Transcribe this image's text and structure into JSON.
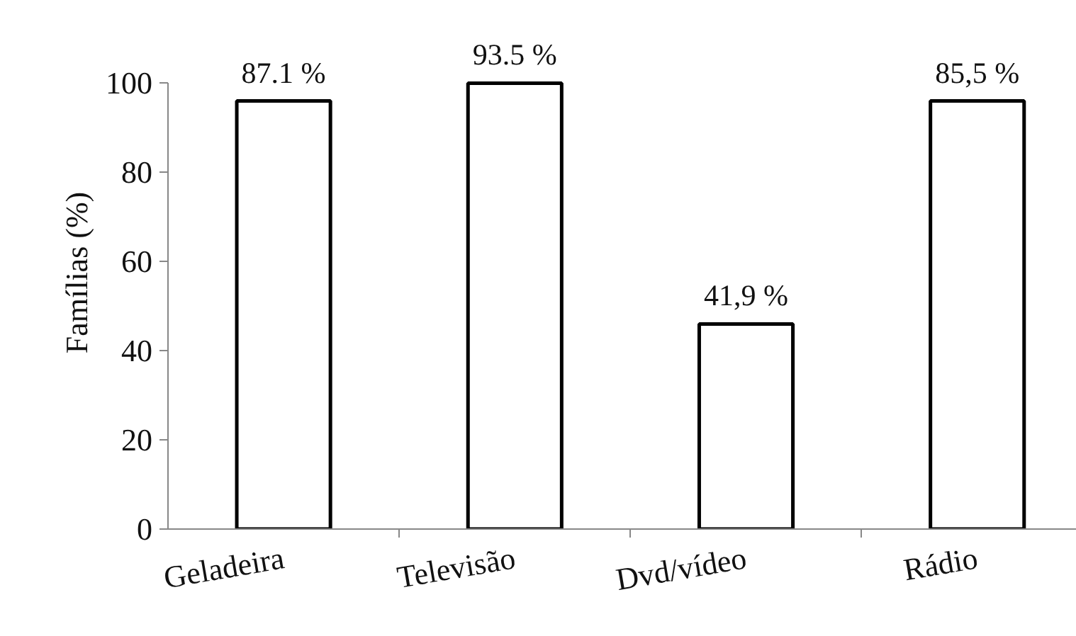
{
  "chart_data": {
    "type": "bar",
    "ylabel": "Famílias (%)",
    "categories": [
      "Geladeira",
      "Televisão",
      "Dvd/vídeo",
      "Rádio"
    ],
    "values": [
      96,
      100,
      46,
      96
    ],
    "annotations": [
      "87.1 %",
      "93.5 %",
      "41,9 %",
      "85,5 %"
    ],
    "color": "#ffffff",
    "ylim": [
      0,
      100
    ],
    "yticks": [
      0,
      20,
      40,
      60,
      80,
      100
    ],
    "grid": false
  }
}
